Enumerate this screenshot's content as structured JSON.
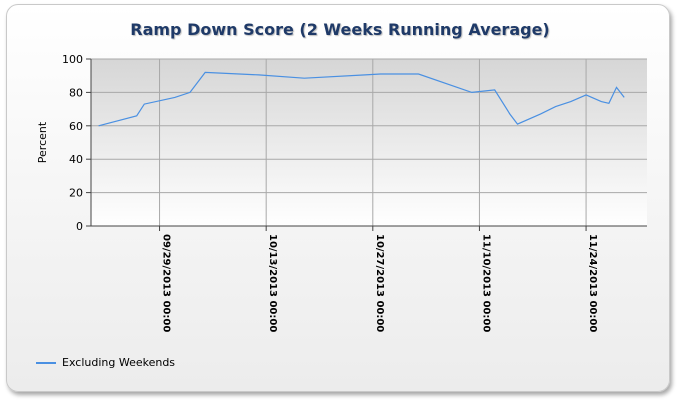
{
  "chart_data": {
    "type": "line",
    "title": "Ramp Down Score (2 Weeks Running Average)",
    "xlabel": "",
    "ylabel": "Percent",
    "ylim": [
      0,
      100
    ],
    "yticks": [
      0,
      20,
      40,
      60,
      80,
      100
    ],
    "xlim": [
      "2013-09-20",
      "2013-12-02"
    ],
    "xticks": [
      {
        "date": "2013-09-29",
        "label": "09/29/2013 00:00"
      },
      {
        "date": "2013-10-13",
        "label": "10/13/2013 00:00"
      },
      {
        "date": "2013-10-27",
        "label": "10/27/2013 00:00"
      },
      {
        "date": "2013-11-10",
        "label": "11/10/2013 00:00"
      },
      {
        "date": "2013-11-24",
        "label": "11/24/2013 00:00"
      }
    ],
    "grid": true,
    "legend_position": "bottom-left",
    "series": [
      {
        "name": "Excluding Weekends",
        "color": "#4a90e2",
        "points": [
          {
            "x": "2013-09-21",
            "y": 60
          },
          {
            "x": "2013-09-26",
            "y": 66
          },
          {
            "x": "2013-09-27",
            "y": 73
          },
          {
            "x": "2013-10-01",
            "y": 77
          },
          {
            "x": "2013-10-03",
            "y": 80
          },
          {
            "x": "2013-10-05",
            "y": 92
          },
          {
            "x": "2013-10-12",
            "y": 90.5
          },
          {
            "x": "2013-10-18",
            "y": 88.5
          },
          {
            "x": "2013-10-26",
            "y": 90.5
          },
          {
            "x": "2013-10-28",
            "y": 91
          },
          {
            "x": "2013-11-02",
            "y": 91
          },
          {
            "x": "2013-11-09",
            "y": 80
          },
          {
            "x": "2013-11-12",
            "y": 81.5
          },
          {
            "x": "2013-11-14",
            "y": 67
          },
          {
            "x": "2013-11-15",
            "y": 61
          },
          {
            "x": "2013-11-18",
            "y": 67
          },
          {
            "x": "2013-11-20",
            "y": 71.5
          },
          {
            "x": "2013-11-22",
            "y": 74.5
          },
          {
            "x": "2013-11-24",
            "y": 78.5
          },
          {
            "x": "2013-11-26",
            "y": 74.5
          },
          {
            "x": "2013-11-27",
            "y": 73.5
          },
          {
            "x": "2013-11-28",
            "y": 83
          },
          {
            "x": "2013-11-29",
            "y": 77
          }
        ]
      }
    ]
  }
}
